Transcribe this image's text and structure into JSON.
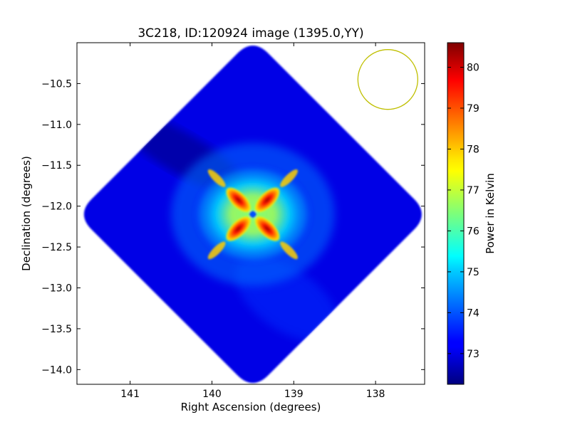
{
  "chart_data": {
    "type": "heatmap",
    "title": "3C218, ID:120924 image (1395.0,YY)",
    "xlabel": "Right Ascension (degrees)",
    "ylabel": "Declination (degrees)",
    "xlim": [
      141.65,
      137.4
    ],
    "ylim": [
      -14.18,
      -10.0
    ],
    "x_ticks": [
      {
        "value": 141,
        "label": "141"
      },
      {
        "value": 140,
        "label": "140"
      },
      {
        "value": 139,
        "label": "139"
      },
      {
        "value": 138,
        "label": "138"
      }
    ],
    "y_ticks": [
      {
        "value": -10.5,
        "label": "−10.5"
      },
      {
        "value": -11.0,
        "label": "−11.0"
      },
      {
        "value": -11.5,
        "label": "−11.5"
      },
      {
        "value": -12.0,
        "label": "−12.0"
      },
      {
        "value": -12.5,
        "label": "−12.5"
      },
      {
        "value": -13.0,
        "label": "−13.0"
      },
      {
        "value": -13.5,
        "label": "−13.5"
      },
      {
        "value": -14.0,
        "label": "−14.0"
      }
    ],
    "image_center": {
      "ra": 139.5,
      "dec": -12.1
    },
    "colorbar": {
      "label": "Power in Kelvin",
      "range": [
        72.25,
        80.6
      ],
      "colormap": "jet",
      "ticks": [
        {
          "value": 73,
          "label": "73"
        },
        {
          "value": 74,
          "label": "74"
        },
        {
          "value": 75,
          "label": "75"
        },
        {
          "value": 76,
          "label": "76"
        },
        {
          "value": 77,
          "label": "77"
        },
        {
          "value": 78,
          "label": "78"
        },
        {
          "value": 79,
          "label": "79"
        },
        {
          "value": 80,
          "label": "80"
        }
      ]
    },
    "beam": {
      "ra": 137.85,
      "dec": -10.45,
      "color": "#bfbf00"
    },
    "grid": false
  }
}
